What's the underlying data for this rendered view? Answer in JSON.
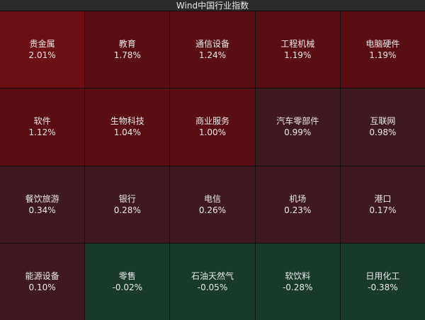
{
  "title": "Wind中国行业指数",
  "colors": {
    "strong_up": "#6b0f14",
    "up": "#5a0e14",
    "mild_up": "#3e1a20",
    "down": "#193a2b"
  },
  "tiles": [
    {
      "name": "贵金属",
      "change": "2.01%",
      "level": "strong_up"
    },
    {
      "name": "教育",
      "change": "1.78%",
      "level": "up"
    },
    {
      "name": "通信设备",
      "change": "1.24%",
      "level": "up"
    },
    {
      "name": "工程机械",
      "change": "1.19%",
      "level": "up"
    },
    {
      "name": "电脑硬件",
      "change": "1.19%",
      "level": "up"
    },
    {
      "name": "软件",
      "change": "1.12%",
      "level": "up"
    },
    {
      "name": "生物科技",
      "change": "1.04%",
      "level": "up"
    },
    {
      "name": "商业服务",
      "change": "1.00%",
      "level": "up"
    },
    {
      "name": "汽车零部件",
      "change": "0.99%",
      "level": "mild_up"
    },
    {
      "name": "互联网",
      "change": "0.98%",
      "level": "mild_up"
    },
    {
      "name": "餐饮旅游",
      "change": "0.34%",
      "level": "mild_up"
    },
    {
      "name": "银行",
      "change": "0.28%",
      "level": "mild_up"
    },
    {
      "name": "电信",
      "change": "0.26%",
      "level": "mild_up"
    },
    {
      "name": "机场",
      "change": "0.23%",
      "level": "mild_up"
    },
    {
      "name": "港口",
      "change": "0.17%",
      "level": "mild_up"
    },
    {
      "name": "能源设备",
      "change": "0.10%",
      "level": "mild_up"
    },
    {
      "name": "零售",
      "change": "-0.02%",
      "level": "down"
    },
    {
      "name": "石油天然气",
      "change": "-0.05%",
      "level": "down"
    },
    {
      "name": "软饮料",
      "change": "-0.28%",
      "level": "down"
    },
    {
      "name": "日用化工",
      "change": "-0.38%",
      "level": "down"
    }
  ]
}
